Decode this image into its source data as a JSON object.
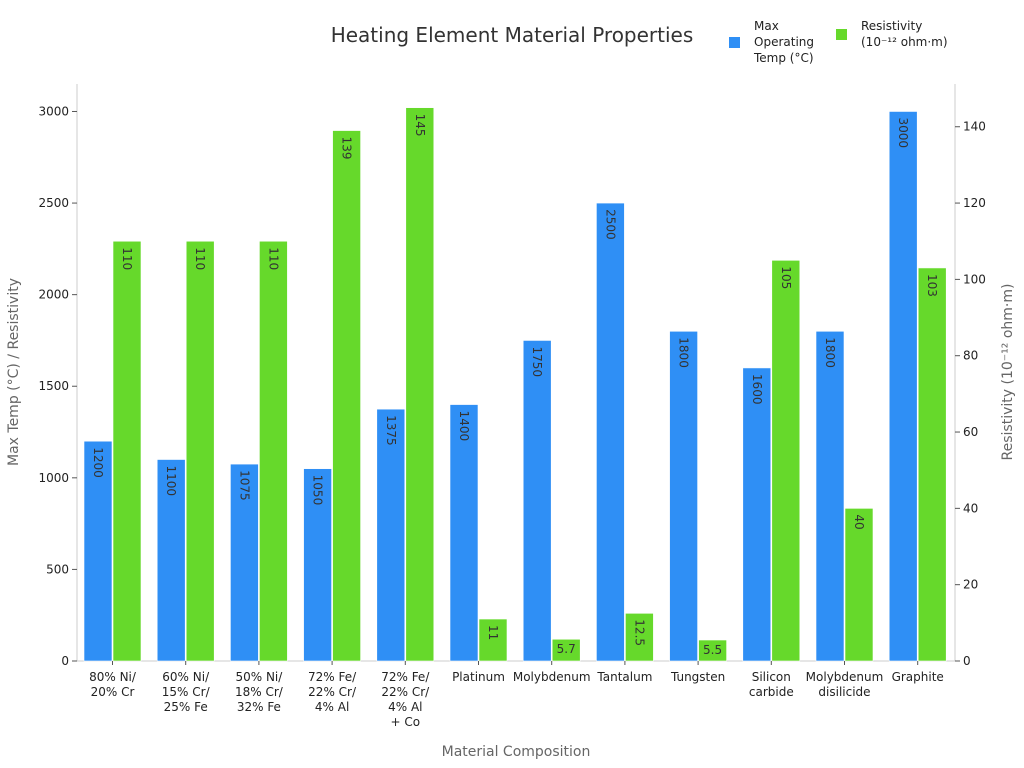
{
  "chart_data": {
    "type": "bar",
    "title": "Heating Element Material Properties",
    "xlabel": "Material Composition",
    "ylabel": "Max Temp (°C) / Resistivity",
    "y2label": "Resistivity (10⁻¹² ohm·m)",
    "ylim": [
      0,
      3150
    ],
    "y2lim": [
      0,
      151.2
    ],
    "yticks": [
      0,
      500,
      1000,
      1500,
      2000,
      2500,
      3000
    ],
    "y2ticks": [
      0,
      20,
      40,
      60,
      80,
      100,
      120,
      140
    ],
    "categories": [
      [
        "80% Ni/",
        "20% Cr"
      ],
      [
        "60% Ni/",
        "15% Cr/",
        "25% Fe"
      ],
      [
        "50% Ni/",
        "18% Cr/",
        "32% Fe"
      ],
      [
        "72% Fe/",
        "22% Cr/",
        "4% Al"
      ],
      [
        "72% Fe/",
        "22% Cr/",
        "4% Al",
        "+ Co"
      ],
      [
        "Platinum"
      ],
      [
        "Molybdenum"
      ],
      [
        "Tantalum"
      ],
      [
        "Tungsten"
      ],
      [
        "Silicon",
        "carbide"
      ],
      [
        "Molybdenum",
        "disilicide"
      ],
      [
        "Graphite"
      ]
    ],
    "series": [
      {
        "name": "Max Operating Temp (°C)",
        "legend_lines": [
          "Max",
          "Operating",
          "Temp (°C)"
        ],
        "axis": "left",
        "color": "#2f8ff5",
        "values": [
          1200,
          1100,
          1075,
          1050,
          1375,
          1400,
          1750,
          2500,
          1800,
          1600,
          1800,
          3000
        ],
        "labels": [
          "1200",
          "1100",
          "1075",
          "1050",
          "1375",
          "1400",
          "1750",
          "2500",
          "1800",
          "1600",
          "1800",
          "3000"
        ]
      },
      {
        "name": "Resistivity (10⁻¹² ohm·m)",
        "legend_lines": [
          "Resistivity",
          "(10⁻¹² ohm·m)"
        ],
        "axis": "right",
        "color": "#66d92b",
        "values": [
          110,
          110,
          110,
          139,
          145,
          11,
          5.7,
          12.5,
          5.5,
          105,
          40,
          103
        ],
        "labels": [
          "110",
          "110",
          "110",
          "139",
          "145",
          "11",
          "5.7",
          "12.5",
          "5.5",
          "105",
          "40",
          "103"
        ]
      }
    ],
    "legend_position": "top-right",
    "grid": false
  }
}
